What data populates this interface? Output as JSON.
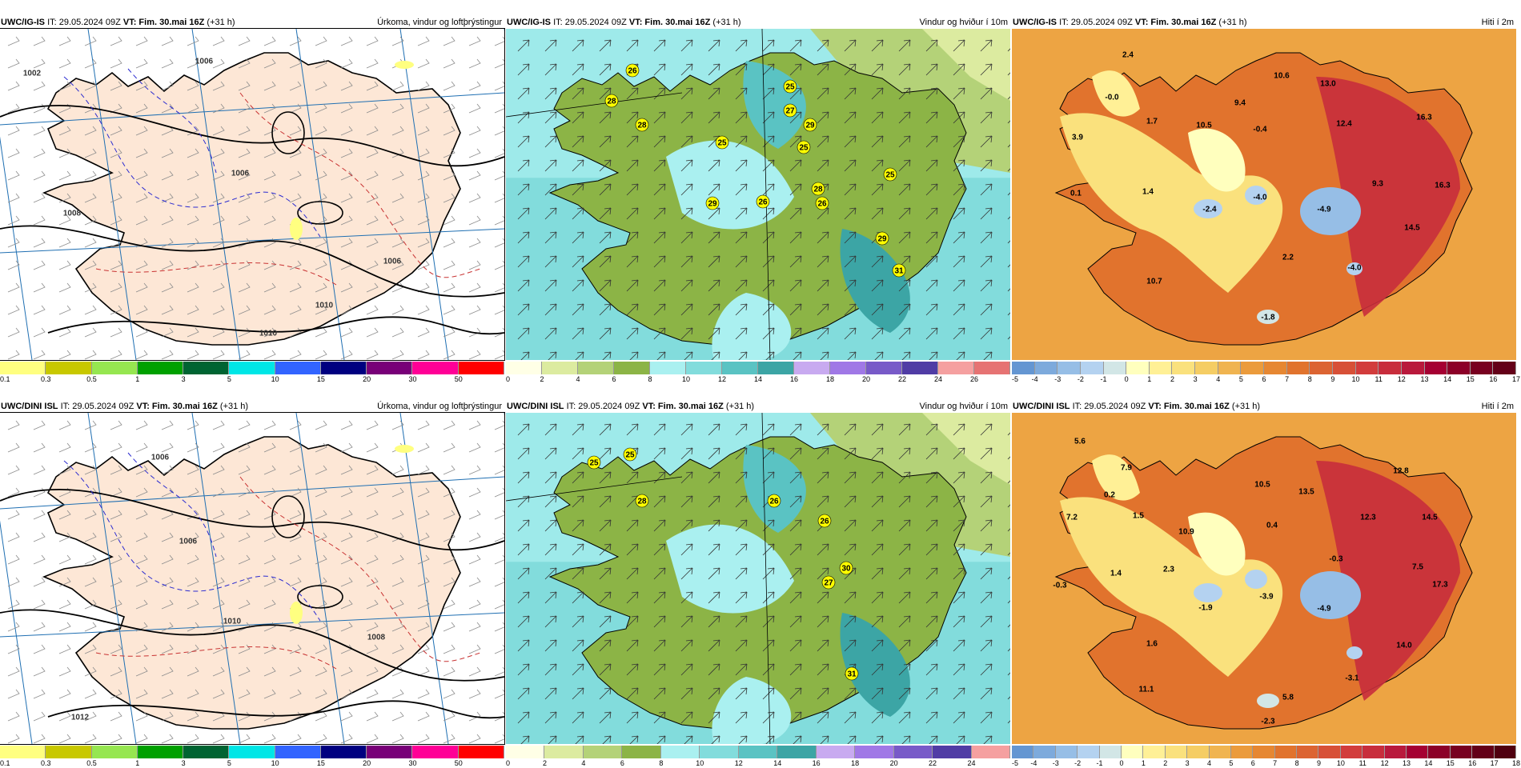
{
  "panels": [
    {
      "id": "p1",
      "left": "UWC/IG-IS",
      "it": "IT: 29.05.2024 09Z",
      "vt_label": "VT: Fim. 30.mai 16Z",
      "lead": "(+31 h)",
      "right": "Úrkoma, vindur og loftþrýstingur",
      "kind": "precip",
      "labels": [
        "1002",
        "1006",
        "1006",
        "1008",
        "1010",
        "1010",
        "1006"
      ]
    },
    {
      "id": "p2",
      "left": "UWC/IG-IS",
      "it": "IT: 29.05.2024 09Z",
      "vt_label": "VT: Fim. 30.mai 16Z",
      "lead": "(+31 h)",
      "right": "Vindur og hviður í 10m",
      "kind": "wind",
      "labels": [
        "26",
        "28",
        "28",
        "25",
        "27",
        "29",
        "25",
        "25",
        "29",
        "28",
        "25",
        "26",
        "26",
        "29",
        "31"
      ]
    },
    {
      "id": "p3",
      "left": "UWC/IG-IS",
      "it": "IT: 29.05.2024 09Z",
      "vt_label": "VT: Fim. 30.mai 16Z",
      "lead": "(+31 h)",
      "right": "Hiti í 2m",
      "kind": "temp",
      "labels": [
        "2.4",
        "-0.0",
        "1.7",
        "3.9",
        "10.6",
        "13.0",
        "9.4",
        "10.5",
        "-0.4",
        "12.4",
        "16.3",
        "0.1",
        "1.4",
        "-2.4",
        "-4.0",
        "-4.9",
        "9.3",
        "16.3",
        "14.5",
        "2.2",
        "10.7",
        "-4.0",
        "-1.8"
      ]
    },
    {
      "id": "p4",
      "left": "UWC/DINI ISL",
      "it": "IT: 29.05.2024 09Z",
      "vt_label": "VT: Fim. 30.mai 16Z",
      "lead": "(+31 h)",
      "right": "Úrkoma, vindur og loftþrýstingur",
      "kind": "precip",
      "labels": [
        "1006",
        "1010",
        "1006",
        "1008",
        "1012"
      ]
    },
    {
      "id": "p5",
      "left": "UWC/DINI ISL",
      "it": "IT: 29.05.2024 09Z",
      "vt_label": "VT: Fim. 30.mai 16Z",
      "lead": "(+31 h)",
      "right": "Vindur og hviður í 10m",
      "kind": "wind",
      "labels": [
        "25",
        "25",
        "28",
        "26",
        "26",
        "30",
        "27",
        "31"
      ]
    },
    {
      "id": "p6",
      "left": "UWC/DINI ISL",
      "it": "IT: 29.05.2024 09Z",
      "vt_label": "VT: Fim. 30.mai 16Z",
      "lead": "(+31 h)",
      "right": "Hiti í 2m",
      "kind": "temp",
      "labels": [
        "5.6",
        "7.9",
        "0.2",
        "7.2",
        "1.5",
        "10.5",
        "13.5",
        "12.8",
        "10.9",
        "0.4",
        "12.3",
        "14.5",
        "-0.3",
        "1.4",
        "2.3",
        "-0.3",
        "7.5",
        "17.3",
        "-1.9",
        "-3.9",
        "-4.9",
        "1.6",
        "14.0",
        "11.1",
        "-3.1",
        "5.8",
        "-2.3"
      ]
    }
  ],
  "colorbars": {
    "precip": {
      "colors": [
        "#ffff80",
        "#c8c800",
        "#96e650",
        "#00a000",
        "#006432",
        "#00e6e6",
        "#3264ff",
        "#000080",
        "#780078",
        "#ff0096",
        "#ff0000"
      ],
      "ticks": [
        "0.1",
        "0.3",
        "0.5",
        "1",
        "3",
        "5",
        "10",
        "15",
        "20",
        "30",
        "50"
      ]
    },
    "wind": {
      "colors": [
        "#ffffe6",
        "#dceba0",
        "#b4d278",
        "#8cb446",
        "#aaf0f0",
        "#82dcdc",
        "#5ac3c3",
        "#3ca5a5",
        "#c8aaf0",
        "#a078e6",
        "#785ac8",
        "#503ca5",
        "#f5a0a0",
        "#e67373"
      ],
      "ticks": [
        "0",
        "2",
        "4",
        "6",
        "8",
        "10",
        "12",
        "14",
        "16",
        "18",
        "20",
        "22",
        "24",
        "26"
      ]
    },
    "wind2": {
      "colors": [
        "#ffffe6",
        "#dceba0",
        "#b4d278",
        "#8cb446",
        "#aaf0f0",
        "#82dcdc",
        "#5ac3c3",
        "#3ca5a5",
        "#c8aaf0",
        "#a078e6",
        "#785ac8",
        "#503ca5",
        "#f5a0a0"
      ],
      "ticks": [
        "0",
        "2",
        "4",
        "6",
        "8",
        "10",
        "12",
        "14",
        "16",
        "18",
        "20",
        "22",
        "24"
      ]
    },
    "temp": {
      "colors": [
        "#6496d2",
        "#7daadc",
        "#96bee6",
        "#b4d2f0",
        "#d2e6e6",
        "#ffffbe",
        "#fff096",
        "#fae17d",
        "#f5cd64",
        "#f0b450",
        "#eb9b3c",
        "#e68732",
        "#e1732d",
        "#dc6432",
        "#d75037",
        "#d23c3c",
        "#c82d3c",
        "#b9193c",
        "#a50032",
        "#8c0028",
        "#780020",
        "#640018"
      ],
      "ticks": [
        "-5",
        "-4",
        "-3",
        "-2",
        "-1",
        "0",
        "1",
        "2",
        "3",
        "4",
        "5",
        "6",
        "7",
        "8",
        "9",
        "10",
        "11",
        "12",
        "13",
        "14",
        "15",
        "16",
        "17"
      ]
    },
    "temp2": {
      "colors": [
        "#6496d2",
        "#7daadc",
        "#96bee6",
        "#b4d2f0",
        "#d2e6e6",
        "#ffffbe",
        "#fff096",
        "#fae17d",
        "#f5cd64",
        "#f0b450",
        "#eb9b3c",
        "#e68732",
        "#e1732d",
        "#dc6432",
        "#d75037",
        "#d23c3c",
        "#c82d3c",
        "#b9193c",
        "#a50032",
        "#8c0028",
        "#780020",
        "#640018",
        "#500010"
      ],
      "ticks": [
        "-5",
        "-4",
        "-3",
        "-2",
        "-1",
        "0",
        "1",
        "2",
        "3",
        "4",
        "5",
        "6",
        "7",
        "8",
        "9",
        "10",
        "11",
        "12",
        "13",
        "14",
        "15",
        "16",
        "17",
        "18"
      ]
    }
  }
}
